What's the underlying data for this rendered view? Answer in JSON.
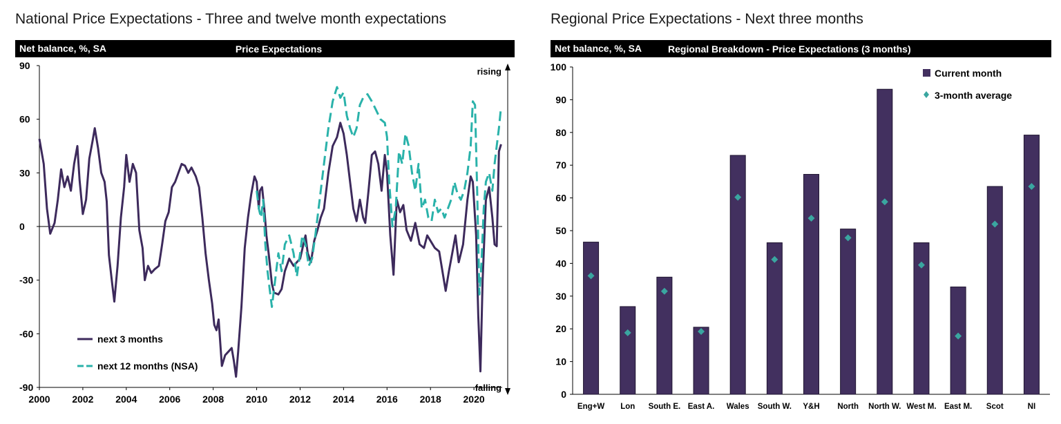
{
  "left_panel": {
    "heading": "National Price Expectations - Three and twelve month expectations",
    "unit_label": "Net balance, %, SA",
    "chart_title": "Price Expectations"
  },
  "right_panel": {
    "heading": "Regional Price Expectations - Next three months",
    "unit_label": "Net balance, %, SA",
    "chart_title": "Regional Breakdown - Price Expectations (3 months)"
  },
  "colors": {
    "purple": "#3d2a5c",
    "teal": "#2ab2aa",
    "bar": "#42305f",
    "marker": "#3aa6a0"
  },
  "chart_data": [
    {
      "type": "line",
      "title": "Price Expectations",
      "ylabel": "Net balance, %, SA",
      "xlim": [
        2000,
        2021.3
      ],
      "ylim": [
        -90,
        90
      ],
      "yticks": [
        90,
        60,
        30,
        0,
        -30,
        -60,
        -90
      ],
      "xticks": [
        2000,
        2002,
        2004,
        2006,
        2008,
        2010,
        2012,
        2014,
        2016,
        2018,
        2020
      ],
      "annotations": {
        "top": "rising",
        "bottom": "falling"
      },
      "legend_placement": "bottom-left",
      "series": [
        {
          "name": "next 3 months",
          "color": "#3d2a5c",
          "dash": "solid",
          "points": [
            [
              2000.0,
              49
            ],
            [
              2000.2,
              35
            ],
            [
              2000.35,
              10
            ],
            [
              2000.5,
              -4
            ],
            [
              2000.7,
              2
            ],
            [
              2000.85,
              15
            ],
            [
              2001.0,
              32
            ],
            [
              2001.15,
              22
            ],
            [
              2001.3,
              28
            ],
            [
              2001.45,
              20
            ],
            [
              2001.6,
              35
            ],
            [
              2001.75,
              45
            ],
            [
              2001.85,
              26
            ],
            [
              2002.0,
              7
            ],
            [
              2002.15,
              15
            ],
            [
              2002.3,
              38
            ],
            [
              2002.45,
              48
            ],
            [
              2002.55,
              55
            ],
            [
              2002.7,
              44
            ],
            [
              2002.85,
              30
            ],
            [
              2003.0,
              25
            ],
            [
              2003.1,
              14
            ],
            [
              2003.2,
              -16
            ],
            [
              2003.35,
              -32
            ],
            [
              2003.45,
              -42
            ],
            [
              2003.6,
              -22
            ],
            [
              2003.75,
              5
            ],
            [
              2003.9,
              22
            ],
            [
              2004.0,
              40
            ],
            [
              2004.15,
              25
            ],
            [
              2004.3,
              35
            ],
            [
              2004.45,
              30
            ],
            [
              2004.6,
              -2
            ],
            [
              2004.75,
              -12
            ],
            [
              2004.85,
              -30
            ],
            [
              2005.0,
              -22
            ],
            [
              2005.15,
              -26
            ],
            [
              2005.3,
              -24
            ],
            [
              2005.5,
              -22
            ],
            [
              2005.65,
              -10
            ],
            [
              2005.8,
              3
            ],
            [
              2005.95,
              8
            ],
            [
              2006.1,
              22
            ],
            [
              2006.25,
              25
            ],
            [
              2006.4,
              30
            ],
            [
              2006.55,
              35
            ],
            [
              2006.7,
              34
            ],
            [
              2006.85,
              30
            ],
            [
              2007.0,
              33
            ],
            [
              2007.2,
              28
            ],
            [
              2007.35,
              22
            ],
            [
              2007.5,
              5
            ],
            [
              2007.65,
              -15
            ],
            [
              2007.8,
              -30
            ],
            [
              2007.95,
              -43
            ],
            [
              2008.05,
              -55
            ],
            [
              2008.15,
              -58
            ],
            [
              2008.25,
              -52
            ],
            [
              2008.4,
              -78
            ],
            [
              2008.55,
              -72
            ],
            [
              2008.7,
              -70
            ],
            [
              2008.85,
              -68
            ],
            [
              2008.95,
              -75
            ],
            [
              2009.05,
              -84
            ],
            [
              2009.15,
              -70
            ],
            [
              2009.3,
              -45
            ],
            [
              2009.45,
              -12
            ],
            [
              2009.6,
              5
            ],
            [
              2009.75,
              18
            ],
            [
              2009.9,
              28
            ],
            [
              2010.0,
              25
            ],
            [
              2010.1,
              10
            ],
            [
              2010.15,
              20
            ],
            [
              2010.25,
              22
            ],
            [
              2010.35,
              10
            ],
            [
              2010.45,
              -5
            ],
            [
              2010.55,
              -15
            ],
            [
              2010.7,
              -32
            ],
            [
              2010.8,
              -37
            ],
            [
              2011.0,
              -38
            ],
            [
              2011.15,
              -35
            ],
            [
              2011.3,
              -25
            ],
            [
              2011.5,
              -18
            ],
            [
              2011.7,
              -22
            ],
            [
              2011.85,
              -20
            ],
            [
              2012.0,
              -18
            ],
            [
              2012.15,
              -10
            ],
            [
              2012.25,
              -5
            ],
            [
              2012.35,
              -15
            ],
            [
              2012.5,
              -20
            ],
            [
              2012.65,
              -8
            ],
            [
              2012.8,
              -2
            ],
            [
              2012.95,
              5
            ],
            [
              2013.1,
              10
            ],
            [
              2013.3,
              30
            ],
            [
              2013.5,
              45
            ],
            [
              2013.7,
              50
            ],
            [
              2013.85,
              58
            ],
            [
              2014.0,
              52
            ],
            [
              2014.15,
              40
            ],
            [
              2014.3,
              25
            ],
            [
              2014.45,
              10
            ],
            [
              2014.6,
              3
            ],
            [
              2014.75,
              15
            ],
            [
              2014.9,
              5
            ],
            [
              2015.0,
              2
            ],
            [
              2015.15,
              20
            ],
            [
              2015.3,
              40
            ],
            [
              2015.45,
              42
            ],
            [
              2015.6,
              35
            ],
            [
              2015.75,
              20
            ],
            [
              2015.9,
              40
            ],
            [
              2016.0,
              30
            ],
            [
              2016.15,
              -5
            ],
            [
              2016.3,
              -27
            ],
            [
              2016.45,
              15
            ],
            [
              2016.6,
              8
            ],
            [
              2016.75,
              12
            ],
            [
              2016.9,
              -2
            ],
            [
              2017.1,
              -8
            ],
            [
              2017.3,
              2
            ],
            [
              2017.5,
              -10
            ],
            [
              2017.7,
              -12
            ],
            [
              2017.85,
              -5
            ],
            [
              2018.0,
              -8
            ],
            [
              2018.2,
              -12
            ],
            [
              2018.4,
              -14
            ],
            [
              2018.55,
              -25
            ],
            [
              2018.7,
              -36
            ],
            [
              2018.85,
              -25
            ],
            [
              2019.0,
              -15
            ],
            [
              2019.15,
              -5
            ],
            [
              2019.3,
              -20
            ],
            [
              2019.5,
              -10
            ],
            [
              2019.7,
              15
            ],
            [
              2019.85,
              28
            ],
            [
              2019.95,
              25
            ],
            [
              2020.1,
              -5
            ],
            [
              2020.2,
              -50
            ],
            [
              2020.3,
              -81
            ],
            [
              2020.4,
              -30
            ],
            [
              2020.55,
              15
            ],
            [
              2020.7,
              22
            ],
            [
              2020.85,
              5
            ],
            [
              2020.95,
              -10
            ],
            [
              2021.05,
              -11
            ],
            [
              2021.15,
              42
            ],
            [
              2021.25,
              46
            ]
          ]
        },
        {
          "name": "next 12 months (NSA)",
          "color": "#2ab2aa",
          "dash": "dashed",
          "points": [
            [
              2010.0,
              20
            ],
            [
              2010.1,
              10
            ],
            [
              2010.2,
              5
            ],
            [
              2010.3,
              15
            ],
            [
              2010.4,
              -10
            ],
            [
              2010.5,
              -25
            ],
            [
              2010.6,
              -35
            ],
            [
              2010.7,
              -45
            ],
            [
              2010.85,
              -30
            ],
            [
              2011.0,
              -15
            ],
            [
              2011.15,
              -25
            ],
            [
              2011.3,
              -10
            ],
            [
              2011.5,
              -5
            ],
            [
              2011.7,
              -15
            ],
            [
              2011.85,
              -28
            ],
            [
              2012.0,
              -15
            ],
            [
              2012.1,
              -5
            ],
            [
              2012.25,
              -10
            ],
            [
              2012.4,
              -22
            ],
            [
              2012.55,
              -18
            ],
            [
              2012.7,
              -5
            ],
            [
              2012.85,
              10
            ],
            [
              2013.0,
              25
            ],
            [
              2013.15,
              40
            ],
            [
              2013.3,
              55
            ],
            [
              2013.5,
              70
            ],
            [
              2013.7,
              78
            ],
            [
              2013.85,
              72
            ],
            [
              2014.0,
              75
            ],
            [
              2014.15,
              62
            ],
            [
              2014.3,
              55
            ],
            [
              2014.45,
              50
            ],
            [
              2014.6,
              55
            ],
            [
              2014.75,
              68
            ],
            [
              2014.9,
              72
            ],
            [
              2015.1,
              74
            ],
            [
              2015.3,
              70
            ],
            [
              2015.5,
              65
            ],
            [
              2015.7,
              60
            ],
            [
              2015.9,
              58
            ],
            [
              2016.0,
              50
            ],
            [
              2016.1,
              25
            ],
            [
              2016.25,
              0
            ],
            [
              2016.4,
              10
            ],
            [
              2016.55,
              42
            ],
            [
              2016.7,
              35
            ],
            [
              2016.85,
              52
            ],
            [
              2017.0,
              45
            ],
            [
              2017.15,
              30
            ],
            [
              2017.3,
              20
            ],
            [
              2017.45,
              35
            ],
            [
              2017.6,
              10
            ],
            [
              2017.75,
              15
            ],
            [
              2017.9,
              5
            ],
            [
              2018.05,
              3
            ],
            [
              2018.2,
              15
            ],
            [
              2018.35,
              8
            ],
            [
              2018.5,
              10
            ],
            [
              2018.65,
              5
            ],
            [
              2018.8,
              10
            ],
            [
              2018.95,
              15
            ],
            [
              2019.1,
              25
            ],
            [
              2019.25,
              18
            ],
            [
              2019.4,
              15
            ],
            [
              2019.55,
              20
            ],
            [
              2019.7,
              30
            ],
            [
              2019.85,
              45
            ],
            [
              2019.95,
              70
            ],
            [
              2020.05,
              68
            ],
            [
              2020.15,
              20
            ],
            [
              2020.25,
              -38
            ],
            [
              2020.35,
              -20
            ],
            [
              2020.45,
              10
            ],
            [
              2020.55,
              25
            ],
            [
              2020.7,
              30
            ],
            [
              2020.85,
              20
            ],
            [
              2020.95,
              35
            ],
            [
              2021.05,
              45
            ],
            [
              2021.15,
              55
            ],
            [
              2021.25,
              67
            ]
          ]
        }
      ]
    },
    {
      "type": "bar",
      "title": "Regional Breakdown - Price Expectations (3 months)",
      "ylabel": "Net balance, %, SA",
      "ylim": [
        0,
        100
      ],
      "yticks": [
        100,
        90,
        80,
        70,
        60,
        50,
        40,
        30,
        20,
        10,
        0
      ],
      "legend_placement": "top-right",
      "categories": [
        "Eng+W",
        "Lon",
        "South E.",
        "East A.",
        "Wales",
        "South W.",
        "Y&H",
        "North",
        "North W.",
        "West M.",
        "East M.",
        "Scot",
        "NI"
      ],
      "series": [
        {
          "name": "Current month",
          "kind": "bar",
          "color": "#42305f",
          "values": [
            46.5,
            26.8,
            35.8,
            20.5,
            73.0,
            46.3,
            67.2,
            50.5,
            93.2,
            46.3,
            32.8,
            63.5,
            79.2
          ]
        },
        {
          "name": "3-month average",
          "kind": "marker",
          "color": "#3aa6a0",
          "values": [
            36.2,
            18.8,
            31.5,
            19.2,
            60.2,
            41.2,
            53.8,
            47.8,
            58.8,
            39.5,
            17.8,
            52.0,
            63.5
          ]
        }
      ]
    }
  ]
}
